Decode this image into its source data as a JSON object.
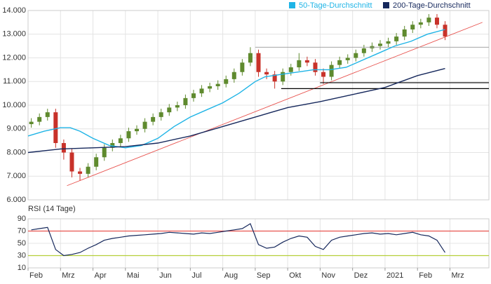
{
  "chart_data": [
    {
      "type": "candlestick",
      "xlim": [
        0,
        14.2
      ],
      "ylim": [
        6,
        14
      ],
      "yticks": [
        {
          "value": 6,
          "label": "6.000"
        },
        {
          "value": 7,
          "label": "7.000"
        },
        {
          "value": 8,
          "label": "8.000"
        },
        {
          "value": 9,
          "label": "9.000"
        },
        {
          "value": 10,
          "label": "10.000"
        },
        {
          "value": 11,
          "label": "11.000"
        },
        {
          "value": 12,
          "label": "12.000"
        },
        {
          "value": 13,
          "label": "13.000"
        },
        {
          "value": 14,
          "label": "14.000"
        }
      ],
      "grid": true,
      "up_color": "#5f8a2e",
      "down_color": "#c8322a",
      "candles": {
        "x": [
          0.1,
          0.35,
          0.6,
          0.85,
          1.1,
          1.35,
          1.6,
          1.85,
          2.1,
          2.35,
          2.6,
          2.85,
          3.1,
          3.35,
          3.6,
          3.85,
          4.1,
          4.35,
          4.6,
          4.85,
          5.1,
          5.35,
          5.6,
          5.85,
          6.1,
          6.35,
          6.6,
          6.85,
          7.1,
          7.35,
          7.6,
          7.85,
          8.1,
          8.35,
          8.6,
          8.85,
          9.1,
          9.35,
          9.6,
          9.85,
          10.1,
          10.35,
          10.6,
          10.85,
          11.1,
          11.35,
          11.6,
          11.85,
          12.1,
          12.35,
          12.6,
          12.85
        ],
        "open": [
          9.2,
          9.3,
          9.5,
          9.7,
          8.4,
          8.0,
          7.2,
          7.1,
          7.4,
          7.8,
          8.2,
          8.4,
          8.6,
          8.9,
          9.0,
          9.3,
          9.5,
          9.7,
          9.9,
          10.0,
          10.3,
          10.5,
          10.7,
          10.8,
          10.9,
          11.1,
          11.4,
          11.8,
          12.2,
          11.4,
          11.3,
          11.0,
          11.4,
          11.6,
          11.9,
          11.8,
          11.4,
          11.2,
          11.7,
          11.9,
          12.0,
          12.2,
          12.4,
          12.5,
          12.6,
          12.7,
          12.9,
          13.2,
          13.4,
          13.5,
          13.7,
          13.4
        ],
        "high": [
          9.45,
          9.65,
          9.85,
          9.85,
          8.55,
          8.15,
          7.35,
          7.55,
          7.95,
          8.35,
          8.55,
          8.75,
          9.05,
          9.15,
          9.45,
          9.65,
          9.85,
          10.05,
          10.15,
          10.45,
          10.65,
          10.85,
          10.95,
          11.05,
          11.25,
          11.55,
          11.95,
          12.45,
          12.35,
          11.55,
          11.45,
          11.55,
          11.75,
          12.2,
          12.05,
          11.95,
          11.55,
          11.85,
          12.05,
          12.15,
          12.35,
          12.55,
          12.65,
          12.75,
          12.85,
          13.05,
          13.35,
          13.55,
          13.65,
          13.85,
          13.85,
          13.55
        ],
        "low": [
          9.05,
          9.15,
          9.35,
          8.2,
          7.7,
          6.95,
          6.8,
          6.95,
          7.25,
          7.65,
          8.05,
          8.25,
          8.45,
          8.75,
          8.85,
          9.15,
          9.35,
          9.55,
          9.75,
          9.85,
          10.15,
          10.35,
          10.55,
          10.65,
          10.75,
          10.95,
          11.25,
          11.65,
          11.2,
          11.1,
          10.7,
          10.85,
          11.25,
          11.45,
          11.65,
          11.25,
          10.9,
          11.05,
          11.55,
          11.75,
          11.85,
          12.05,
          12.25,
          12.35,
          12.45,
          12.55,
          12.75,
          13.05,
          13.25,
          13.35,
          13.25,
          12.75
        ],
        "close": [
          9.3,
          9.5,
          9.7,
          8.4,
          8.0,
          7.2,
          7.1,
          7.4,
          7.8,
          8.2,
          8.4,
          8.6,
          8.9,
          9.0,
          9.3,
          9.5,
          9.7,
          9.9,
          10.0,
          10.3,
          10.5,
          10.7,
          10.8,
          10.9,
          11.1,
          11.4,
          11.8,
          12.2,
          11.4,
          11.3,
          11.0,
          11.4,
          11.6,
          11.9,
          11.8,
          11.4,
          11.2,
          11.7,
          11.9,
          12.0,
          12.2,
          12.4,
          12.5,
          12.6,
          12.7,
          12.9,
          13.2,
          13.4,
          13.5,
          13.7,
          13.4,
          12.9
        ]
      },
      "series": [
        {
          "name": "50-Tage-Durchschnitt",
          "color": "#1fb4e6",
          "x": [
            0,
            0.5,
            1,
            1.3,
            1.6,
            2,
            2.5,
            3,
            3.5,
            4,
            4.5,
            5,
            5.5,
            6,
            6.5,
            7,
            7.3,
            7.8,
            8.3,
            8.8,
            9.3,
            9.8,
            10.3,
            10.8,
            11.3,
            11.8,
            12.3,
            12.85
          ],
          "values": [
            8.7,
            8.9,
            9.05,
            9.05,
            8.9,
            8.6,
            8.3,
            8.2,
            8.3,
            8.6,
            9.1,
            9.5,
            9.8,
            10.1,
            10.5,
            11.0,
            11.2,
            11.3,
            11.4,
            11.5,
            11.5,
            11.6,
            11.9,
            12.2,
            12.5,
            12.7,
            13.0,
            13.2
          ]
        },
        {
          "name": "200-Tage-Durchschnitt",
          "color": "#16285c",
          "x": [
            0,
            1,
            2,
            3,
            4,
            5,
            6,
            7,
            8,
            9,
            10,
            11,
            12,
            12.85
          ],
          "values": [
            8.0,
            8.15,
            8.2,
            8.25,
            8.4,
            8.7,
            9.1,
            9.5,
            9.9,
            10.15,
            10.45,
            10.75,
            11.25,
            11.55
          ]
        }
      ],
      "lines": [
        {
          "x": [
            1.2,
            14.0
          ],
          "y": [
            6.6,
            13.5
          ],
          "color": "#e8534f"
        },
        {
          "x": [
            7.0,
            14.2
          ],
          "y": [
            12.45,
            12.45
          ],
          "color": "#999999"
        },
        {
          "x": [
            9.0,
            14.2
          ],
          "y": [
            10.95,
            10.95
          ],
          "color": "#000000"
        },
        {
          "x": [
            7.8,
            14.2
          ],
          "y": [
            10.7,
            10.7
          ],
          "color": "#000000"
        }
      ]
    },
    {
      "type": "line",
      "title": "RSI (14 Tage)",
      "xlim": [
        0,
        14.2
      ],
      "ylim": [
        10,
        90
      ],
      "xticks": [
        {
          "value": 0,
          "label": "Feb"
        },
        {
          "value": 1,
          "label": "Mrz"
        },
        {
          "value": 2,
          "label": "Apr"
        },
        {
          "value": 3,
          "label": "Mai"
        },
        {
          "value": 4,
          "label": "Jun"
        },
        {
          "value": 5,
          "label": "Jul"
        },
        {
          "value": 6,
          "label": "Aug"
        },
        {
          "value": 7,
          "label": "Sep"
        },
        {
          "value": 8,
          "label": "Okt"
        },
        {
          "value": 9,
          "label": "Nov"
        },
        {
          "value": 10,
          "label": "Dez"
        },
        {
          "value": 11,
          "label": "2021"
        },
        {
          "value": 12,
          "label": "Feb"
        },
        {
          "value": 13,
          "label": "Mrz"
        }
      ],
      "yticks": [
        10,
        30,
        50,
        70,
        90
      ],
      "grid": true,
      "hlines": [
        {
          "value": 70,
          "color": "#e8534f"
        },
        {
          "value": 30,
          "color": "#b5cf3a"
        }
      ],
      "series": [
        {
          "color": "#16285c",
          "x": [
            0.1,
            0.35,
            0.6,
            0.85,
            1.1,
            1.35,
            1.6,
            1.85,
            2.1,
            2.35,
            2.6,
            2.85,
            3.1,
            3.35,
            3.6,
            3.85,
            4.1,
            4.35,
            4.6,
            4.85,
            5.1,
            5.35,
            5.6,
            5.85,
            6.1,
            6.35,
            6.6,
            6.85,
            7.1,
            7.35,
            7.6,
            7.85,
            8.1,
            8.35,
            8.6,
            8.85,
            9.1,
            9.35,
            9.6,
            9.85,
            10.1,
            10.35,
            10.6,
            10.85,
            11.1,
            11.35,
            11.6,
            11.85,
            12.1,
            12.35,
            12.6,
            12.85
          ],
          "values": [
            72,
            74,
            76,
            40,
            30,
            32,
            35,
            42,
            48,
            55,
            58,
            60,
            62,
            63,
            64,
            65,
            66,
            68,
            67,
            66,
            65,
            67,
            66,
            68,
            70,
            72,
            74,
            82,
            48,
            42,
            44,
            52,
            58,
            62,
            60,
            45,
            40,
            55,
            60,
            62,
            64,
            66,
            67,
            65,
            66,
            64,
            66,
            68,
            64,
            62,
            55,
            35
          ]
        }
      ]
    }
  ]
}
